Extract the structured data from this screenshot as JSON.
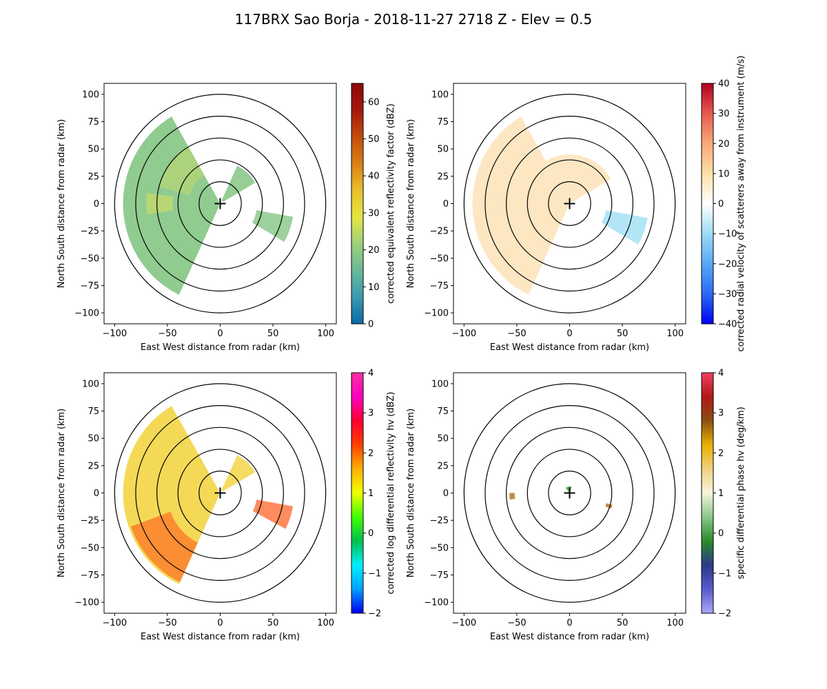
{
  "title": "117BRX Sao Borja - 2018-11-27 2718 Z -  Elev = 0.5",
  "chart_data": [
    {
      "type": "heatmap",
      "id": "reflectivity",
      "xlabel": "East West distance from radar (km)",
      "ylabel": "North South distance from radar (km)",
      "xlim": [
        -110,
        110
      ],
      "ylim": [
        -110,
        110
      ],
      "xticks": [
        -100,
        -50,
        0,
        50,
        100
      ],
      "yticks": [
        -100,
        -75,
        -50,
        -25,
        0,
        25,
        50,
        75,
        100
      ],
      "range_rings_km": [
        20,
        40,
        60,
        80,
        100
      ],
      "colorbar": {
        "label": "corrected equivalent reflectivity factor (dBZ)",
        "vmin": 0,
        "vmax": 65,
        "ticks": [
          0,
          10,
          20,
          30,
          40,
          50,
          60
        ],
        "colors": [
          "#0a6aa8",
          "#3a9bb0",
          "#69b99a",
          "#9fd07c",
          "#e4e540",
          "#e8c02c",
          "#d88016",
          "#c44c0c",
          "#a51810",
          "#8c0808"
        ]
      },
      "echo_color": "#7cc27c",
      "echo_accent": "#e2e25a"
    },
    {
      "type": "heatmap",
      "id": "velocity",
      "xlabel": "East West distance from radar (km)",
      "ylabel": "North South distance from radar (km)",
      "xlim": [
        -110,
        110
      ],
      "ylim": [
        -110,
        110
      ],
      "xticks": [
        -100,
        -50,
        0,
        50,
        100
      ],
      "yticks": [
        -100,
        -75,
        -50,
        -25,
        0,
        25,
        50,
        75,
        100
      ],
      "range_rings_km": [
        20,
        40,
        60,
        80,
        100
      ],
      "colorbar": {
        "label": "corrected radial velocity of scatterers away from instrument (m/s)",
        "vmin": -40,
        "vmax": 40,
        "ticks": [
          -40,
          -30,
          -20,
          -10,
          0,
          10,
          20,
          30,
          40
        ],
        "colors": [
          "#0000f5",
          "#2a6af5",
          "#5aa8f5",
          "#9cdcf5",
          "#ffffff",
          "#fde0a8",
          "#f9a878",
          "#e85a50",
          "#b00020"
        ]
      },
      "echo_color": "#fde3b8",
      "echo_accent": "#9fe0f5"
    },
    {
      "type": "heatmap",
      "id": "zdr",
      "xlabel": "East West distance from radar (km)",
      "ylabel": "North South distance from radar (km)",
      "xlim": [
        -110,
        110
      ],
      "ylim": [
        -110,
        110
      ],
      "xticks": [
        -100,
        -50,
        0,
        50,
        100
      ],
      "yticks": [
        -100,
        -75,
        -50,
        -25,
        0,
        25,
        50,
        75,
        100
      ],
      "range_rings_km": [
        20,
        40,
        60,
        80,
        100
      ],
      "colorbar": {
        "label": "corrected log differential reflectivity hv (dBZ)",
        "vmin": -2,
        "vmax": 4,
        "ticks": [
          -2,
          -1,
          0,
          1,
          2,
          3,
          4
        ],
        "colors": [
          "#0000f0",
          "#00a0ff",
          "#00f0ff",
          "#00c050",
          "#40ff00",
          "#f0ff00",
          "#ffb000",
          "#ff4000",
          "#ff0030",
          "#ff00c0",
          "#ff30a0"
        ]
      },
      "echo_color": "#f2d23a",
      "echo_accent": "#ff5a1a"
    },
    {
      "type": "heatmap",
      "id": "kdp",
      "xlabel": "East West distance from radar (km)",
      "ylabel": "North South distance from radar (km)",
      "xlim": [
        -110,
        110
      ],
      "ylim": [
        -110,
        110
      ],
      "xticks": [
        -100,
        -50,
        0,
        50,
        100
      ],
      "yticks": [
        -100,
        -75,
        -50,
        -25,
        0,
        25,
        50,
        75,
        100
      ],
      "range_rings_km": [
        20,
        40,
        60,
        80,
        100
      ],
      "colorbar": {
        "label": "specific differential phase hv (deg/km)",
        "vmin": -2,
        "vmax": 4,
        "ticks": [
          -2,
          -1,
          0,
          1,
          2,
          3,
          4
        ],
        "colors": [
          "#a8a8f8",
          "#5a5ad0",
          "#2a3a8a",
          "#2a8a2a",
          "#8ac88a",
          "#f5f5dc",
          "#f0d080",
          "#e8b000",
          "#8a5010",
          "#b01818",
          "#f04060"
        ]
      },
      "echo_color": "#5aa85a",
      "echo_accent": "#c08030"
    }
  ]
}
